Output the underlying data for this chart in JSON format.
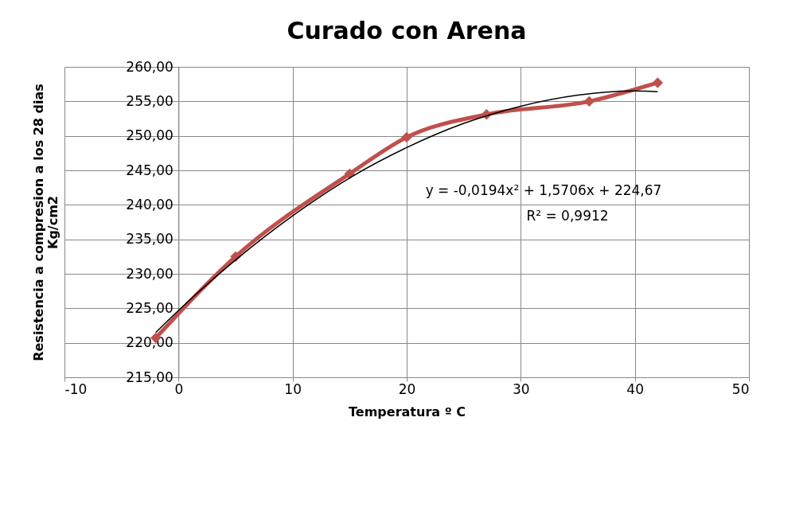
{
  "chart_data": {
    "type": "line",
    "title": "Curado con Arena",
    "xlabel": "Temperatura º C",
    "ylabel": "Resistencia a compresion a los 28 dias\nKg/cm2",
    "series": [
      {
        "color": "#c0504d",
        "marker": "diamond",
        "x": [
          -2,
          5,
          15,
          20,
          27,
          36,
          42
        ],
        "values": [
          220.7,
          232.5,
          244.5,
          249.8,
          253.1,
          255.0,
          257.7
        ]
      },
      {
        "color": "#000000",
        "marker": "none",
        "x": [
          -2,
          0,
          5,
          10,
          15,
          20,
          25,
          30,
          35,
          40,
          42
        ],
        "values": [
          221.5,
          224.7,
          232.0,
          238.4,
          243.9,
          248.3,
          251.8,
          254.3,
          255.9,
          256.5,
          256.4
        ]
      }
    ],
    "xlim": [
      -10,
      50
    ],
    "xticks": [
      -10,
      0,
      10,
      20,
      30,
      40,
      50
    ],
    "ylim": [
      215,
      260
    ],
    "yticks": [
      {
        "value": 215,
        "label": "215,00"
      },
      {
        "value": 220,
        "label": "220,00"
      },
      {
        "value": 225,
        "label": "225,00"
      },
      {
        "value": 230,
        "label": "230,00"
      },
      {
        "value": 235,
        "label": "235,00"
      },
      {
        "value": 240,
        "label": "240,00"
      },
      {
        "value": 245,
        "label": "245,00"
      },
      {
        "value": 250,
        "label": "250,00"
      },
      {
        "value": 255,
        "label": "255,00"
      },
      {
        "value": 260,
        "label": "260,00"
      }
    ],
    "annotations": [
      "y = -0,0194x² + 1,5706x + 224,67",
      "R² = 0,9912"
    ],
    "grid": true
  }
}
